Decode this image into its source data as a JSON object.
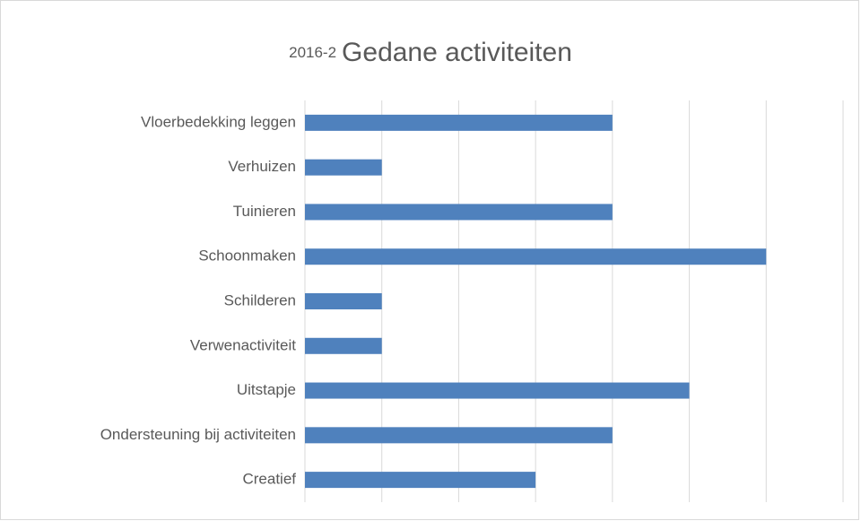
{
  "chart_data": {
    "type": "bar",
    "orientation": "horizontal",
    "subtitle": "2016-2",
    "title": "Gedane activiteiten",
    "categories": [
      "Vloerbedekking leggen",
      "Verhuizen",
      "Tuinieren",
      "Schoonmaken",
      "Schilderen",
      "Verwenactiviteit",
      "Uitstapje",
      "Ondersteuning bij activiteiten",
      "Creatief"
    ],
    "values": [
      4,
      1,
      4,
      6,
      1,
      1,
      5,
      4,
      3
    ],
    "color": "#4f81bd",
    "xlim": [
      0,
      7
    ],
    "xticks": [
      0,
      1,
      2,
      3,
      4,
      5,
      6,
      7
    ],
    "grid": true
  }
}
